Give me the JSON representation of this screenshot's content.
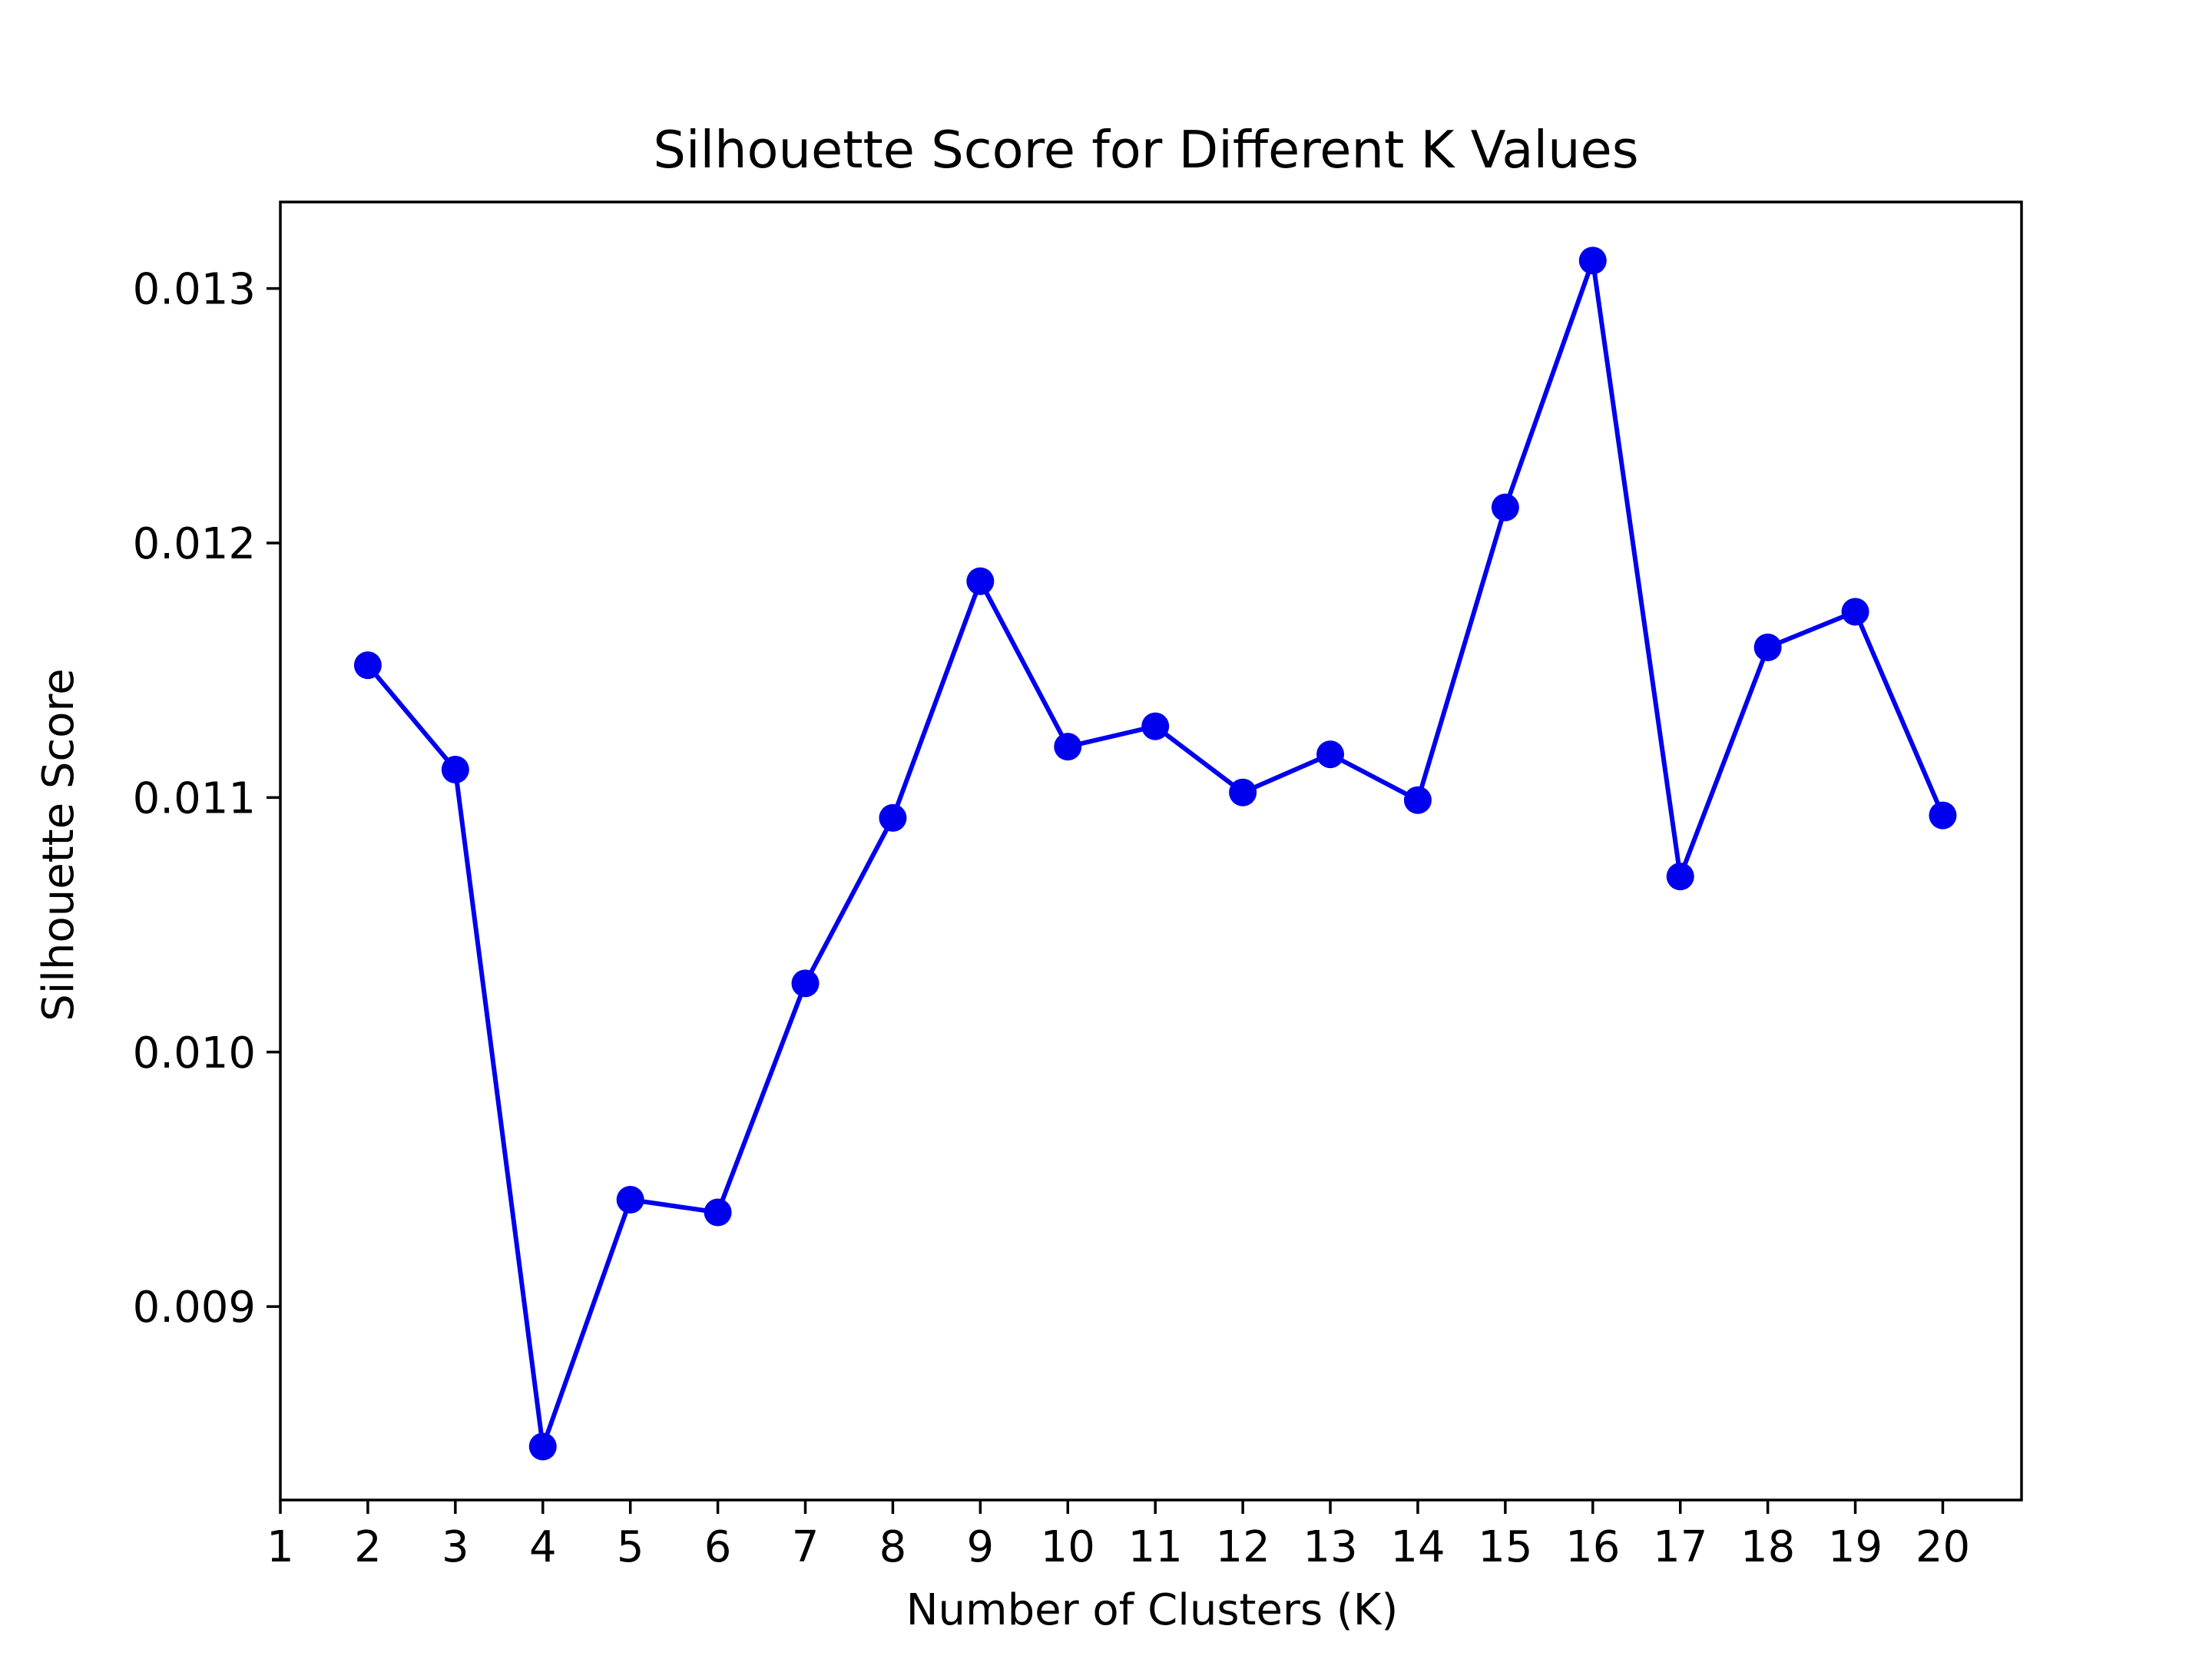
{
  "chart_data": {
    "type": "line",
    "title": "Silhouette Score for Different K Values",
    "xlabel": "Number of Clusters (K)",
    "ylabel": "Silhouette Score",
    "x": [
      2,
      3,
      4,
      5,
      6,
      7,
      8,
      9,
      10,
      11,
      12,
      13,
      14,
      15,
      16,
      17,
      18,
      19,
      20
    ],
    "series": [
      {
        "values": [
          0.01152,
          0.01111,
          0.00845,
          0.00942,
          0.00937,
          0.01027,
          0.01092,
          0.01185,
          0.0112,
          0.01128,
          0.01102,
          0.01117,
          0.01099,
          0.01214,
          0.01311,
          0.01069,
          0.01159,
          0.01173,
          0.01093
        ],
        "color": "#0000ee",
        "marker": "circle"
      }
    ],
    "xticks": [
      1,
      2,
      3,
      4,
      5,
      6,
      7,
      8,
      9,
      10,
      11,
      12,
      13,
      14,
      15,
      16,
      17,
      18,
      19,
      20
    ],
    "yticks": [
      0.009,
      0.01,
      0.011,
      0.012,
      0.013
    ],
    "ytick_labels": [
      "0.009",
      "0.010",
      "0.011",
      "0.012",
      "0.013"
    ],
    "xlim": [
      1,
      20.9
    ],
    "ylim": [
      0.00824,
      0.01334
    ],
    "grid": false,
    "legend": "none"
  }
}
